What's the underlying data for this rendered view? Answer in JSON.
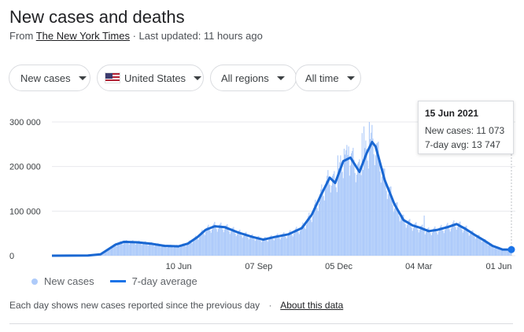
{
  "header": {
    "title": "New cases and deaths",
    "source_prefix": "From",
    "source_link": "The New York Times",
    "updated": "· Last updated: 11 hours ago"
  },
  "filters": {
    "metric": "New cases",
    "country": "United States",
    "region": "All regions",
    "range": "All time"
  },
  "tooltip": {
    "date": "15 Jun 2021",
    "new_cases": "New cases: 11 073",
    "avg": "7-day avg: 13 747"
  },
  "legend": {
    "cases": "New cases",
    "avg": "7-day average"
  },
  "footer": {
    "note": "Each day shows new cases reported since the previous day",
    "sep": "·",
    "link": "About this data"
  },
  "colors": {
    "bars": "#aecbfa",
    "line": "#1967d2",
    "grid": "#e8eaed"
  },
  "chart_data": {
    "type": "bar",
    "ylim": [
      0,
      300000
    ],
    "yticks": [
      {
        "value": 0,
        "label": "0"
      },
      {
        "value": 100000,
        "label": "100 000"
      },
      {
        "value": 200000,
        "label": "200 000"
      },
      {
        "value": 300000,
        "label": "300 000"
      }
    ],
    "x_range": [
      "2020-01-21",
      "2021-06-15"
    ],
    "xticks": [
      {
        "date": "2020-06-10",
        "label": "10 Jun"
      },
      {
        "date": "2020-09-07",
        "label": "07 Sep"
      },
      {
        "date": "2020-12-05",
        "label": "05 Dec"
      },
      {
        "date": "2021-03-04",
        "label": "04 Mar"
      },
      {
        "date": "2021-06-01",
        "label": "01 Jun"
      }
    ],
    "series": [
      {
        "name": "7-day average",
        "kind": "line",
        "points": [
          [
            "2020-01-21",
            0
          ],
          [
            "2020-03-01",
            500
          ],
          [
            "2020-03-15",
            3000
          ],
          [
            "2020-04-01",
            25000
          ],
          [
            "2020-04-10",
            31000
          ],
          [
            "2020-04-25",
            30000
          ],
          [
            "2020-05-10",
            27000
          ],
          [
            "2020-05-25",
            22000
          ],
          [
            "2020-06-10",
            21000
          ],
          [
            "2020-06-20",
            27000
          ],
          [
            "2020-07-01",
            42000
          ],
          [
            "2020-07-10",
            58000
          ],
          [
            "2020-07-20",
            66000
          ],
          [
            "2020-07-31",
            64000
          ],
          [
            "2020-08-15",
            52000
          ],
          [
            "2020-08-31",
            42000
          ],
          [
            "2020-09-12",
            36000
          ],
          [
            "2020-09-25",
            42000
          ],
          [
            "2020-10-10",
            48000
          ],
          [
            "2020-10-25",
            62000
          ],
          [
            "2020-11-05",
            92000
          ],
          [
            "2020-11-15",
            135000
          ],
          [
            "2020-11-25",
            175000
          ],
          [
            "2020-12-01",
            163000
          ],
          [
            "2020-12-10",
            212000
          ],
          [
            "2020-12-18",
            220000
          ],
          [
            "2020-12-28",
            188000
          ],
          [
            "2021-01-05",
            230000
          ],
          [
            "2021-01-11",
            255000
          ],
          [
            "2021-01-15",
            245000
          ],
          [
            "2021-01-25",
            170000
          ],
          [
            "2021-02-05",
            115000
          ],
          [
            "2021-02-15",
            80000
          ],
          [
            "2021-02-25",
            68000
          ],
          [
            "2021-03-05",
            63000
          ],
          [
            "2021-03-15",
            55000
          ],
          [
            "2021-03-25",
            58000
          ],
          [
            "2021-04-05",
            64000
          ],
          [
            "2021-04-15",
            71000
          ],
          [
            "2021-04-25",
            60000
          ],
          [
            "2021-05-05",
            47000
          ],
          [
            "2021-05-15",
            35000
          ],
          [
            "2021-05-25",
            22000
          ],
          [
            "2021-06-05",
            14000
          ],
          [
            "2021-06-15",
            13747
          ]
        ]
      },
      {
        "name": "New cases",
        "kind": "bars",
        "note": "daily values approximated from the average with spikes",
        "spikes": [
          [
            "2020-11-20",
            150000
          ],
          [
            "2020-12-04",
            225000
          ],
          [
            "2020-12-11",
            240000
          ],
          [
            "2020-12-16",
            245000
          ],
          [
            "2020-12-31",
            275000
          ],
          [
            "2021-01-02",
            290000
          ],
          [
            "2021-01-08",
            300000
          ],
          [
            "2021-02-12",
            95000
          ],
          [
            "2021-03-10",
            90000
          ]
        ]
      }
    ],
    "highlight": {
      "date": "2021-06-15",
      "new_cases": 11073,
      "avg": 13747
    }
  }
}
